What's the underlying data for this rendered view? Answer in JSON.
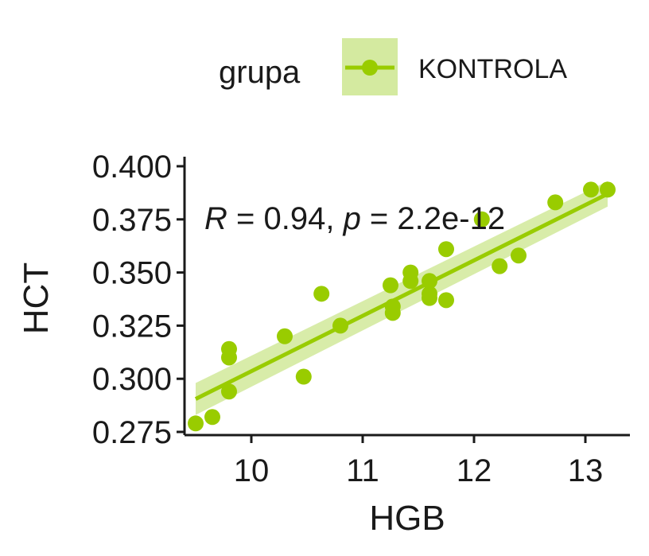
{
  "chart_data": {
    "type": "scatter",
    "xlabel": "HGB",
    "ylabel": "HCT",
    "xlim": [
      9.4,
      13.4
    ],
    "ylim": [
      0.275,
      0.4
    ],
    "x_ticks": [
      10,
      11,
      12,
      13
    ],
    "x_tick_labels": [
      "10",
      "11",
      "12",
      "13"
    ],
    "y_ticks": [
      0.275,
      0.3,
      0.325,
      0.35,
      0.375,
      0.4
    ],
    "y_tick_labels": [
      "0.275",
      "0.300",
      "0.325",
      "0.350",
      "0.375",
      "0.400"
    ],
    "grid": false,
    "legend": {
      "title": "grupa",
      "position": "top",
      "entries": [
        "KONTROLA"
      ]
    },
    "series": [
      {
        "name": "KONTROLA",
        "color": "#99cc00",
        "band_color": "#d4eaa0",
        "points": [
          [
            9.5,
            0.279
          ],
          [
            9.65,
            0.282
          ],
          [
            9.8,
            0.294
          ],
          [
            9.8,
            0.31
          ],
          [
            9.8,
            0.314
          ],
          [
            10.3,
            0.32
          ],
          [
            10.47,
            0.301
          ],
          [
            10.63,
            0.34
          ],
          [
            10.8,
            0.325
          ],
          [
            11.25,
            0.344
          ],
          [
            11.27,
            0.331
          ],
          [
            11.27,
            0.334
          ],
          [
            11.43,
            0.346
          ],
          [
            11.43,
            0.35
          ],
          [
            11.6,
            0.338
          ],
          [
            11.6,
            0.34
          ],
          [
            11.6,
            0.346
          ],
          [
            11.75,
            0.337
          ],
          [
            11.75,
            0.361
          ],
          [
            12.07,
            0.375
          ],
          [
            12.23,
            0.353
          ],
          [
            12.4,
            0.358
          ],
          [
            12.73,
            0.383
          ],
          [
            13.05,
            0.389
          ],
          [
            13.2,
            0.389
          ]
        ],
        "fit": {
          "x": [
            9.5,
            13.2
          ],
          "y": [
            0.2905,
            0.387
          ],
          "band_lower": [
            0.283,
            0.381
          ],
          "band_upper": [
            0.298,
            0.393
          ]
        }
      }
    ],
    "annotation": {
      "r_label": "R",
      "r_text": " = 0.94, ",
      "p_label": "p",
      "p_text": " = 2.2e-12"
    }
  }
}
